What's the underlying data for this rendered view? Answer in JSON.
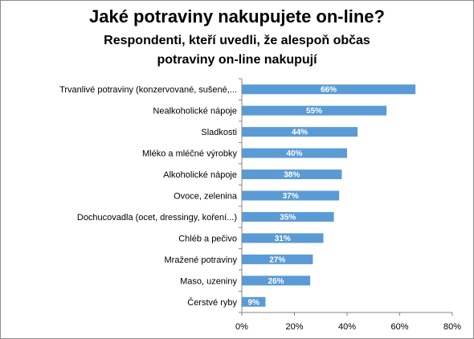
{
  "chart_data": {
    "type": "bar",
    "orientation": "horizontal",
    "title": "Jaké potraviny nakupujete on-line?",
    "subtitle_lines": [
      "Respondenti,  kteří uvedli, že alespoň občas",
      "potraviny on-line nakupují"
    ],
    "categories": [
      "Trvanlivé potraviny (konzervované, sušené,...",
      "Nealkoholické nápoje",
      "Sladkosti",
      "Mléko a mléčné výrobky",
      "Alkoholické nápoje",
      "Ovoce, zelenina",
      "Dochucovadla (ocet, dressingy, koření...)",
      "Chléb a pečivo",
      "Mražené potraviny",
      "Maso, uzeniny",
      "Čerstvé ryby"
    ],
    "values": [
      66,
      55,
      44,
      40,
      38,
      37,
      35,
      31,
      27,
      26,
      9
    ],
    "value_labels": [
      "66%",
      "55%",
      "44%",
      "40%",
      "38%",
      "37%",
      "35%",
      "31%",
      "27%",
      "26%",
      "9%"
    ],
    "xlim": [
      0,
      80
    ],
    "x_ticks": [
      "0%",
      "20%",
      "40%",
      "60%",
      "80%"
    ],
    "grid": false,
    "legend": "none",
    "bar_color": "#5b9bd5"
  }
}
